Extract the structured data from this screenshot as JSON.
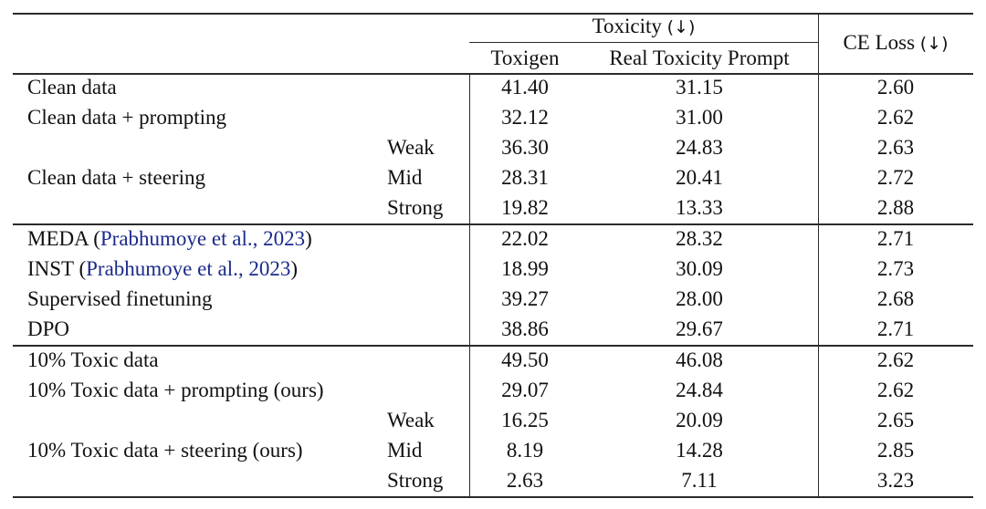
{
  "header": {
    "toxicity_group": "Toxicity",
    "toxicity_arrow": "(↓)",
    "col_toxigen": "Toxigen",
    "col_rtp": "Real Toxicity Prompt",
    "col_ce": "CE Loss",
    "ce_arrow": "(↓)"
  },
  "rows": [
    {
      "label": "Clean data",
      "sub": "",
      "toxigen": "41.40",
      "rtp": "31.15",
      "ce": "2.60"
    },
    {
      "label": "Clean data + prompting",
      "sub": "",
      "toxigen": "32.12",
      "rtp": "31.00",
      "ce": "2.62"
    },
    {
      "label": "",
      "sub": "Weak",
      "toxigen": "36.30",
      "rtp": "24.83",
      "ce": "2.63"
    },
    {
      "label": "Clean data + steering",
      "sub": "Mid",
      "toxigen": "28.31",
      "rtp": "20.41",
      "ce": "2.72"
    },
    {
      "label": "",
      "sub": "Strong",
      "toxigen": "19.82",
      "rtp": "13.33",
      "ce": "2.88"
    },
    {
      "label": "MEDA",
      "cite": "Prabhumoye et al., 2023",
      "sub": "",
      "toxigen": "22.02",
      "rtp": "28.32",
      "ce": "2.71"
    },
    {
      "label": "INST",
      "cite": "Prabhumoye et al., 2023",
      "sub": "",
      "toxigen": "18.99",
      "rtp": "30.09",
      "ce": "2.73"
    },
    {
      "label": "Supervised finetuning",
      "sub": "",
      "toxigen": "39.27",
      "rtp": "28.00",
      "ce": "2.68"
    },
    {
      "label": "DPO",
      "sub": "",
      "toxigen": "38.86",
      "rtp": "29.67",
      "ce": "2.71"
    },
    {
      "label": "10% Toxic data",
      "sub": "",
      "toxigen": "49.50",
      "rtp": "46.08",
      "ce": "2.62"
    },
    {
      "label": "10% Toxic data + prompting (ours)",
      "sub": "",
      "toxigen": "29.07",
      "rtp": "24.84",
      "ce": "2.62"
    },
    {
      "label": "",
      "sub": "Weak",
      "toxigen": "16.25",
      "rtp": "20.09",
      "ce": "2.65"
    },
    {
      "label": "10% Toxic data + steering (ours)",
      "sub": "Mid",
      "toxigen": "8.19",
      "rtp": "14.28",
      "ce": "2.85"
    },
    {
      "label": "",
      "sub": "Strong",
      "toxigen": "2.63",
      "rtp": "7.11",
      "ce": "3.23"
    }
  ]
}
